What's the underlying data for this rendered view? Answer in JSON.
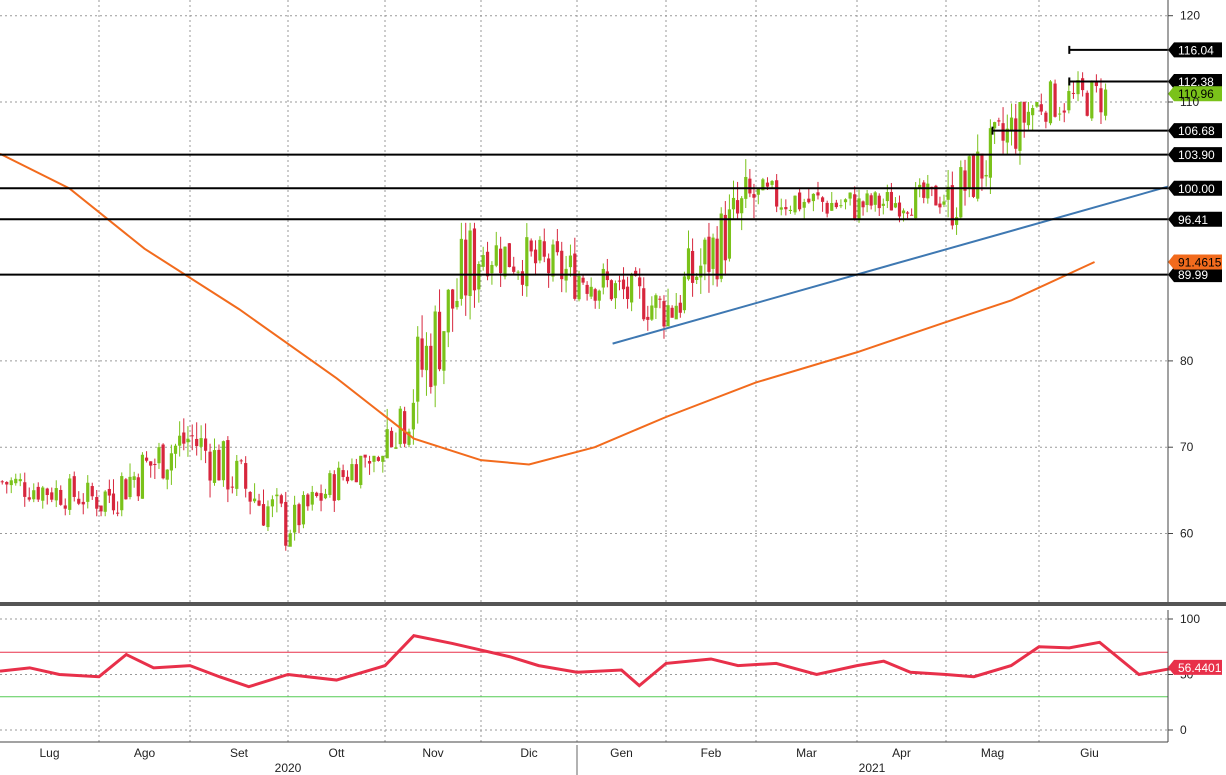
{
  "chart_data": [
    {
      "type": "candlestick",
      "title": "",
      "xlabel": "",
      "ylabel": "",
      "ylim": [
        50,
        121
      ],
      "y_ticks": [
        "60",
        "70",
        "80",
        "110",
        "120"
      ],
      "x_months": [
        "Lug",
        "Ago",
        "Set",
        "Ott",
        "Nov",
        "Dic",
        "Gen",
        "Feb",
        "Mar",
        "Apr",
        "Mag",
        "Giu"
      ],
      "x_years": [
        "2020",
        "2021"
      ],
      "grid": true,
      "colors": {
        "up": "#7ac21a",
        "down": "#d7263d",
        "ma": "#f26b1d",
        "trend": "#3e78b2",
        "level": "#000000"
      },
      "levels": [
        {
          "value": 116.04,
          "label": "116.04",
          "from": "Giu"
        },
        {
          "value": 112.38,
          "label": "112.38",
          "from": "Giu"
        },
        {
          "value": 106.68,
          "label": "106.68",
          "from": "Mag"
        },
        {
          "value": 103.9,
          "label": "103.90",
          "from": "Lug"
        },
        {
          "value": 100.0,
          "label": "100.00",
          "from": "Lug"
        },
        {
          "value": 96.41,
          "label": "96.41",
          "from": "Lug"
        },
        {
          "value": 89.99,
          "label": "89.99",
          "from": "Lug"
        }
      ],
      "last_price": {
        "value": 110.96,
        "label": "110.96"
      },
      "moving_average": {
        "last": {
          "value": 91.4615,
          "label": "91.4615"
        },
        "points": [
          [
            0,
            104
          ],
          [
            0.7,
            100
          ],
          [
            1.5,
            93
          ],
          [
            2.5,
            86
          ],
          [
            3.5,
            78
          ],
          [
            4.3,
            71
          ],
          [
            5,
            68.5
          ],
          [
            5.5,
            68
          ],
          [
            6.2,
            70
          ],
          [
            7,
            73.5
          ],
          [
            8,
            77.5
          ],
          [
            9,
            81
          ],
          [
            10,
            84.5
          ],
          [
            10.7,
            87
          ],
          [
            11.55,
            91.46
          ]
        ]
      },
      "trendline": {
        "start": [
          6.4,
          82
        ],
        "end": [
          12.3,
          100.2
        ]
      },
      "monthly_ohlc": [
        {
          "month": "Lug",
          "o": 66,
          "h": 70,
          "l": 61,
          "c": 64
        },
        {
          "month": "Ago",
          "o": 64,
          "h": 76,
          "l": 62,
          "c": 71
        },
        {
          "month": "Set",
          "o": 71,
          "h": 73,
          "l": 58,
          "c": 61
        },
        {
          "month": "Ott",
          "o": 61,
          "h": 69,
          "l": 59,
          "c": 71
        },
        {
          "month": "Nov",
          "o": 71,
          "h": 96,
          "l": 70,
          "c": 93
        },
        {
          "month": "Dic",
          "o": 93,
          "h": 97,
          "l": 83,
          "c": 90
        },
        {
          "month": "Gen",
          "o": 90,
          "h": 94,
          "l": 82,
          "c": 86
        },
        {
          "month": "Feb",
          "o": 86,
          "h": 104,
          "l": 85,
          "c": 99
        },
        {
          "month": "Mar",
          "o": 99,
          "h": 103,
          "l": 93,
          "c": 98
        },
        {
          "month": "Apr",
          "o": 98,
          "h": 104,
          "l": 96,
          "c": 99
        },
        {
          "month": "Mag",
          "o": 98,
          "h": 110,
          "l": 94,
          "c": 110
        },
        {
          "month": "Giu",
          "o": 110,
          "h": 116.04,
          "l": 105,
          "c": 110.96
        }
      ]
    },
    {
      "type": "line",
      "title": "",
      "xlabel": "",
      "ylabel": "",
      "ylim": [
        0,
        100
      ],
      "y_ticks": [
        "100",
        "50",
        "0"
      ],
      "grid": true,
      "bands": {
        "upper": 70,
        "lower": 30
      },
      "colors": {
        "line": "#e8304a",
        "upper": "#e8304a",
        "lower": "#55cc55"
      },
      "last": {
        "value": 56.4401,
        "label": "56.4401"
      },
      "points": [
        [
          0,
          53
        ],
        [
          0.3,
          56
        ],
        [
          0.6,
          50
        ],
        [
          1,
          48
        ],
        [
          1.3,
          68
        ],
        [
          1.6,
          56
        ],
        [
          2,
          58
        ],
        [
          2.3,
          48
        ],
        [
          2.6,
          39
        ],
        [
          3,
          50
        ],
        [
          3.5,
          45
        ],
        [
          4,
          58
        ],
        [
          4.3,
          85
        ],
        [
          4.7,
          78
        ],
        [
          5,
          72
        ],
        [
          5.3,
          66
        ],
        [
          5.6,
          58
        ],
        [
          6,
          52
        ],
        [
          6.5,
          54
        ],
        [
          6.7,
          40
        ],
        [
          7,
          60
        ],
        [
          7.5,
          64
        ],
        [
          7.8,
          58
        ],
        [
          8.2,
          60
        ],
        [
          8.6,
          50
        ],
        [
          9,
          58
        ],
        [
          9.3,
          62
        ],
        [
          9.6,
          52
        ],
        [
          10,
          50
        ],
        [
          10.3,
          48
        ],
        [
          10.7,
          58
        ],
        [
          11,
          75
        ],
        [
          11.3,
          74
        ],
        [
          11.6,
          79
        ],
        [
          12,
          50
        ],
        [
          12.3,
          55
        ],
        [
          12.6,
          56.44
        ]
      ]
    }
  ]
}
